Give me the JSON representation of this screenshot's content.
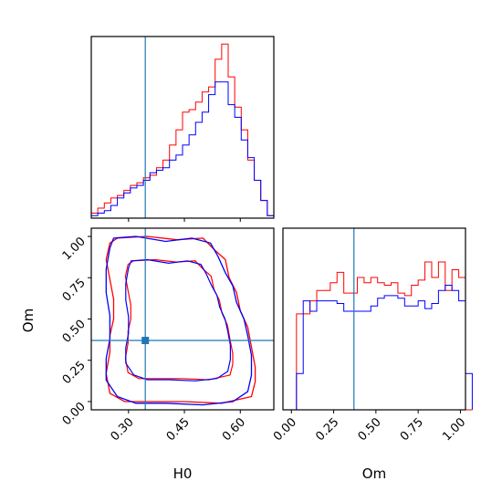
{
  "colors": {
    "series_a": "#ff0000",
    "series_b": "#0000ff",
    "truth": "#1f77b4",
    "axes": "#000000"
  },
  "chart_data": [
    {
      "type": "histogram",
      "panel": "H0 marginal (top-left)",
      "parameter": "H0",
      "xlim": [
        0.2,
        0.69
      ],
      "xticks": [
        0.3,
        0.45,
        0.6
      ],
      "yticks_shown": false,
      "truth": 0.345,
      "bin_edges_start": 0.2,
      "bin_width": 0.0175,
      "series": [
        {
          "color": "red",
          "counts": [
            2,
            4,
            6,
            8,
            9,
            11,
            13,
            14,
            16,
            17,
            20,
            23,
            29,
            35,
            42,
            43,
            46,
            50,
            52,
            63,
            69,
            56,
            44,
            35,
            23,
            15,
            7,
            1
          ]
        },
        {
          "color": "blue",
          "counts": [
            1,
            2,
            3,
            5,
            8,
            10,
            12,
            13,
            15,
            18,
            19,
            20,
            23,
            25,
            29,
            33,
            38,
            42,
            49,
            54,
            54,
            45,
            40,
            31,
            24,
            15,
            7,
            1
          ]
        }
      ]
    },
    {
      "type": "contour",
      "panel": "H0 vs Om 2D (bottom-left)",
      "xlabel": "H0",
      "ylabel": "Om",
      "xlim": [
        0.2,
        0.69
      ],
      "ylim": [
        -0.05,
        1.05
      ],
      "xtick_labels": [
        "0.30",
        "0.45",
        "0.60"
      ],
      "ytick_labels": [
        "0.00",
        "0.25",
        "0.50",
        "0.75",
        "1.00"
      ],
      "truth": [
        0.345,
        0.37
      ],
      "series": [
        {
          "color": "red",
          "outer_contour": [
            [
              0.27,
              0.99
            ],
            [
              0.35,
              1.0
            ],
            [
              0.43,
              0.98
            ],
            [
              0.5,
              0.99
            ],
            [
              0.53,
              0.92
            ],
            [
              0.56,
              0.86
            ],
            [
              0.57,
              0.75
            ],
            [
              0.59,
              0.66
            ],
            [
              0.6,
              0.55
            ],
            [
              0.62,
              0.45
            ],
            [
              0.63,
              0.33
            ],
            [
              0.64,
              0.21
            ],
            [
              0.64,
              0.12
            ],
            [
              0.63,
              0.03
            ],
            [
              0.55,
              -0.01
            ],
            [
              0.45,
              0.0
            ],
            [
              0.36,
              0.0
            ],
            [
              0.29,
              0.0
            ],
            [
              0.25,
              0.05
            ],
            [
              0.24,
              0.17
            ],
            [
              0.25,
              0.3
            ],
            [
              0.25,
              0.4
            ],
            [
              0.26,
              0.5
            ],
            [
              0.26,
              0.62
            ],
            [
              0.25,
              0.74
            ],
            [
              0.24,
              0.86
            ],
            [
              0.25,
              0.96
            ]
          ]
        },
        {
          "color": "blue",
          "outer_contour": [
            [
              0.26,
              0.99
            ],
            [
              0.32,
              1.0
            ],
            [
              0.4,
              0.97
            ],
            [
              0.47,
              0.99
            ],
            [
              0.52,
              0.96
            ],
            [
              0.54,
              0.88
            ],
            [
              0.56,
              0.78
            ],
            [
              0.58,
              0.7
            ],
            [
              0.59,
              0.6
            ],
            [
              0.61,
              0.5
            ],
            [
              0.62,
              0.4
            ],
            [
              0.63,
              0.28
            ],
            [
              0.63,
              0.16
            ],
            [
              0.62,
              0.06
            ],
            [
              0.58,
              0.0
            ],
            [
              0.5,
              -0.02
            ],
            [
              0.4,
              -0.01
            ],
            [
              0.32,
              -0.01
            ],
            [
              0.27,
              0.03
            ],
            [
              0.24,
              0.13
            ],
            [
              0.24,
              0.26
            ],
            [
              0.25,
              0.38
            ],
            [
              0.25,
              0.52
            ],
            [
              0.24,
              0.66
            ],
            [
              0.24,
              0.8
            ],
            [
              0.25,
              0.93
            ]
          ]
        }
      ]
    },
    {
      "type": "histogram",
      "panel": "Om marginal (bottom-right)",
      "parameter": "Om",
      "xlabel": "Om",
      "xlim": [
        -0.05,
        1.03
      ],
      "xtick_labels": [
        "0.00",
        "0.25",
        "0.50",
        "0.75",
        "1.00"
      ],
      "truth": 0.37,
      "bin_edges_start": -0.05,
      "bin_width": 0.04,
      "series": [
        {
          "color": "red",
          "counts": [
            0,
            0,
            37,
            37,
            42,
            46,
            46,
            49,
            53,
            45,
            45,
            51,
            49,
            51,
            49,
            48,
            49,
            45,
            44,
            48,
            50,
            57,
            51,
            57,
            46,
            54,
            51,
            0
          ]
        },
        {
          "color": "blue",
          "counts": [
            0,
            0,
            14,
            42,
            38,
            42,
            42,
            42,
            41,
            38,
            38,
            38,
            38,
            40,
            43,
            44,
            44,
            43,
            40,
            40,
            42,
            39,
            41,
            46,
            48,
            46,
            42,
            14
          ]
        }
      ]
    }
  ]
}
